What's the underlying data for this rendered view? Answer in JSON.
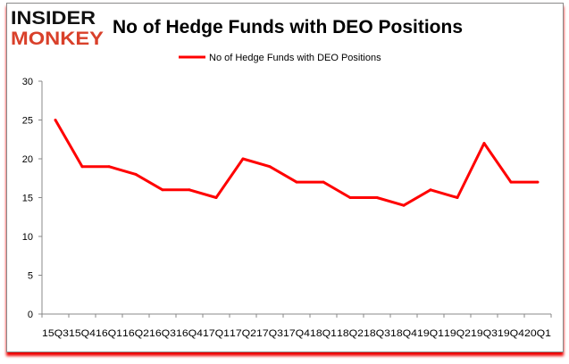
{
  "logo": {
    "line1": "INSIDER",
    "line2": "MONKEY"
  },
  "colors": {
    "series": "#ff0000",
    "logo_dark": "#111111",
    "logo_red": "#d9402a",
    "axis": "#888888"
  },
  "chart_data": {
    "type": "line",
    "title": "No of Hedge Funds with DEO Positions",
    "legend_position": "top",
    "grid": false,
    "xlabel": "",
    "ylabel": "",
    "ylim": [
      0,
      30
    ],
    "yticks": [
      0,
      5,
      10,
      15,
      20,
      25,
      30
    ],
    "categories": [
      "15Q3",
      "15Q4",
      "16Q1",
      "16Q2",
      "16Q3",
      "16Q4",
      "17Q1",
      "17Q2",
      "17Q3",
      "17Q4",
      "18Q1",
      "18Q2",
      "18Q3",
      "18Q4",
      "19Q1",
      "19Q2",
      "19Q3",
      "19Q4",
      "20Q1"
    ],
    "series": [
      {
        "name": "No of Hedge Funds with DEO Positions",
        "values": [
          25,
          19,
          19,
          18,
          16,
          16,
          15,
          20,
          19,
          17,
          17,
          15,
          15,
          14,
          16,
          15,
          22,
          17,
          17
        ]
      }
    ]
  }
}
